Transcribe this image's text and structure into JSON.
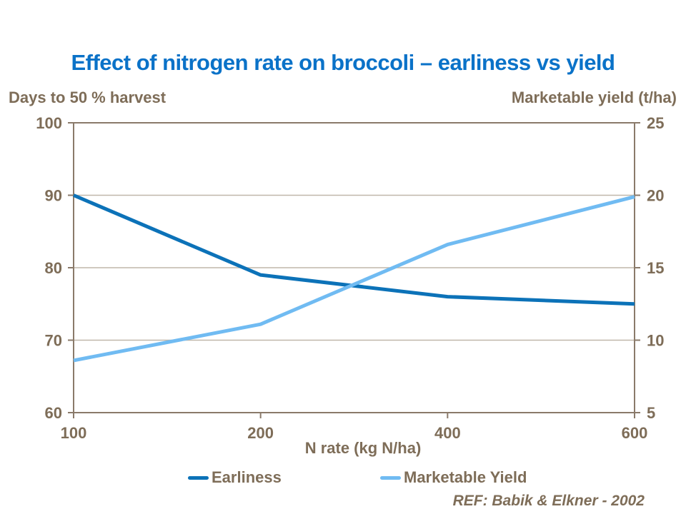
{
  "title": "Effect of nitrogen rate on broccoli – earliness vs yield",
  "left_axis_header": "Days to 50 % harvest",
  "right_axis_header": "Marketable yield (t/ha)",
  "footer": {
    "ref": "REF: Babik & Elkner - 2002"
  },
  "colors": {
    "title_blue": "#0a72c8",
    "text_brown": "#7e6d58",
    "axis_line": "#8a7a6a",
    "gridline": "#c0b7aa",
    "earliness_line": "#0c72b8",
    "yield_line": "#70bbf2",
    "background": "#ffffff"
  },
  "chart_data": {
    "type": "line",
    "categories": [
      "100",
      "200",
      "400",
      "600"
    ],
    "xlabel": "N rate (kg N/ha)",
    "left_axis": {
      "label": "Days to 50 % harvest",
      "range": [
        60,
        100
      ],
      "ticks": [
        60,
        70,
        80,
        90,
        100
      ]
    },
    "right_axis": {
      "label": "Marketable yield (t/ha)",
      "range": [
        5,
        25
      ],
      "ticks": [
        5,
        10,
        15,
        20,
        25
      ]
    },
    "series": [
      {
        "name": "Earliness",
        "axis": "left",
        "color": "#0c72b8",
        "values": [
          90,
          79,
          76,
          75
        ]
      },
      {
        "name": "Marketable Yield",
        "axis": "right",
        "color": "#70bbf2",
        "values": [
          8.6,
          11.1,
          16.6,
          19.9
        ]
      }
    ],
    "grid": true,
    "legend_position": "bottom"
  }
}
